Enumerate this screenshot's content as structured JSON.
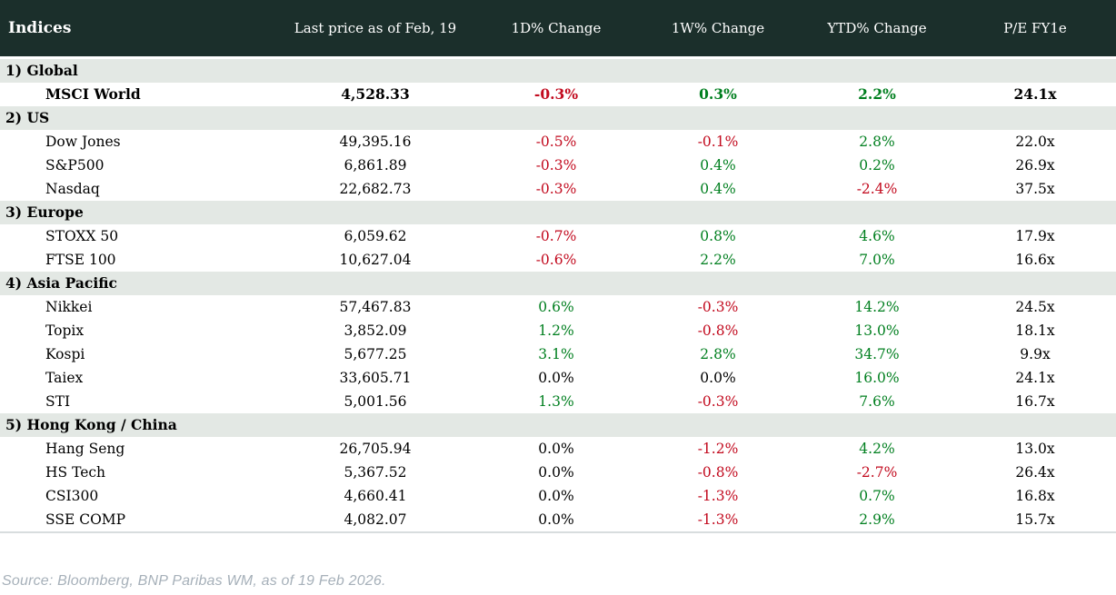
{
  "colors": {
    "header_bg": "#1B2F2B",
    "section_bg": "#E3E8E4",
    "positive": "#007F1F",
    "negative": "#C20A1E",
    "neutral_value": "#000000",
    "header_text": "#FFFFFF",
    "source_text": "#A6B0B9"
  },
  "table": {
    "title": "Indices",
    "columns": [
      "Last price as of Feb, 19",
      "1D% Change",
      "1W% Change",
      "YTD% Change",
      "P/E FY1e"
    ],
    "sections": [
      {
        "label": "1) Global",
        "rows": [
          {
            "name": "MSCI World",
            "bold": true,
            "last_price": "4,528.33",
            "d1": "-0.3%",
            "w1": "0.3%",
            "ytd": "2.2%",
            "pe": "24.1x"
          }
        ]
      },
      {
        "label": "2) US",
        "rows": [
          {
            "name": "Dow Jones",
            "last_price": "49,395.16",
            "d1": "-0.5%",
            "w1": "-0.1%",
            "ytd": "2.8%",
            "pe": "22.0x"
          },
          {
            "name": "S&P500",
            "last_price": "6,861.89",
            "d1": "-0.3%",
            "w1": "0.4%",
            "ytd": "0.2%",
            "pe": "26.9x"
          },
          {
            "name": "Nasdaq",
            "last_price": "22,682.73",
            "d1": "-0.3%",
            "w1": "0.4%",
            "ytd": "-2.4%",
            "pe": "37.5x"
          }
        ]
      },
      {
        "label": "3) Europe",
        "rows": [
          {
            "name": "STOXX 50",
            "last_price": "6,059.62",
            "d1": "-0.7%",
            "w1": "0.8%",
            "ytd": "4.6%",
            "pe": "17.9x"
          },
          {
            "name": "FTSE 100",
            "last_price": "10,627.04",
            "d1": "-0.6%",
            "w1": "2.2%",
            "ytd": "7.0%",
            "pe": "16.6x"
          }
        ]
      },
      {
        "label": "4) Asia Pacific",
        "rows": [
          {
            "name": "Nikkei",
            "last_price": "57,467.83",
            "d1": "0.6%",
            "w1": "-0.3%",
            "ytd": "14.2%",
            "pe": "24.5x"
          },
          {
            "name": "Topix",
            "last_price": "3,852.09",
            "d1": "1.2%",
            "w1": "-0.8%",
            "ytd": "13.0%",
            "pe": "18.1x"
          },
          {
            "name": "Kospi",
            "last_price": "5,677.25",
            "d1": "3.1%",
            "w1": "2.8%",
            "ytd": "34.7%",
            "pe": "9.9x"
          },
          {
            "name": "Taiex",
            "last_price": "33,605.71",
            "d1": "0.0%",
            "w1": "0.0%",
            "ytd": "16.0%",
            "pe": "24.1x"
          },
          {
            "name": "STI",
            "last_price": "5,001.56",
            "d1": "1.3%",
            "w1": "-0.3%",
            "ytd": "7.6%",
            "pe": "16.7x"
          }
        ]
      },
      {
        "label": "5) Hong Kong / China",
        "rows": [
          {
            "name": "Hang Seng",
            "last_price": "26,705.94",
            "d1": "0.0%",
            "w1": "-1.2%",
            "ytd": "4.2%",
            "pe": "13.0x"
          },
          {
            "name": "HS Tech",
            "last_price": "5,367.52",
            "d1": "0.0%",
            "w1": "-0.8%",
            "ytd": "-2.7%",
            "pe": "26.4x"
          },
          {
            "name": "CSI300",
            "last_price": "4,660.41",
            "d1": "0.0%",
            "w1": "-1.3%",
            "ytd": "0.7%",
            "pe": "16.8x"
          },
          {
            "name": "SSE COMP",
            "last_price": "4,082.07",
            "d1": "0.0%",
            "w1": "-1.3%",
            "ytd": "2.9%",
            "pe": "15.7x"
          }
        ]
      }
    ]
  },
  "footer": {
    "source": "Source: Bloomberg, BNP Paribas WM, as of 19 Feb 2026."
  },
  "chart_data": {
    "type": "table",
    "title": "Indices",
    "columns": [
      "Indices",
      "Last price as of Feb, 19",
      "1D% Change",
      "1W% Change",
      "YTD% Change",
      "P/E FY1e"
    ],
    "rows": [
      [
        "1) Global",
        "",
        "",
        "",
        "",
        ""
      ],
      [
        "MSCI World",
        4528.33,
        -0.3,
        0.3,
        2.2,
        24.1
      ],
      [
        "2) US",
        "",
        "",
        "",
        "",
        ""
      ],
      [
        "Dow Jones",
        49395.16,
        -0.5,
        -0.1,
        2.8,
        22.0
      ],
      [
        "S&P500",
        6861.89,
        -0.3,
        0.4,
        0.2,
        26.9
      ],
      [
        "Nasdaq",
        22682.73,
        -0.3,
        0.4,
        -2.4,
        37.5
      ],
      [
        "3) Europe",
        "",
        "",
        "",
        "",
        ""
      ],
      [
        "STOXX 50",
        6059.62,
        -0.7,
        0.8,
        4.6,
        17.9
      ],
      [
        "FTSE 100",
        10627.04,
        -0.6,
        2.2,
        7.0,
        16.6
      ],
      [
        "4) Asia Pacific",
        "",
        "",
        "",
        "",
        ""
      ],
      [
        "Nikkei",
        57467.83,
        0.6,
        -0.3,
        14.2,
        24.5
      ],
      [
        "Topix",
        3852.09,
        1.2,
        -0.8,
        13.0,
        18.1
      ],
      [
        "Kospi",
        5677.25,
        3.1,
        2.8,
        34.7,
        9.9
      ],
      [
        "Taiex",
        33605.71,
        0.0,
        0.0,
        16.0,
        24.1
      ],
      [
        "STI",
        5001.56,
        1.3,
        -0.3,
        7.6,
        16.7
      ],
      [
        "5) Hong Kong / China",
        "",
        "",
        "",
        "",
        ""
      ],
      [
        "Hang Seng",
        26705.94,
        0.0,
        -1.2,
        4.2,
        13.0
      ],
      [
        "HS Tech",
        5367.52,
        0.0,
        -0.8,
        -2.7,
        26.4
      ],
      [
        "CSI300",
        4660.41,
        0.0,
        -1.3,
        0.7,
        16.8
      ],
      [
        "SSE COMP",
        4082.07,
        0.0,
        -1.3,
        2.9,
        15.7
      ]
    ],
    "notes": "Percent changes colored green (positive), red (negative), black (0.0%)"
  }
}
